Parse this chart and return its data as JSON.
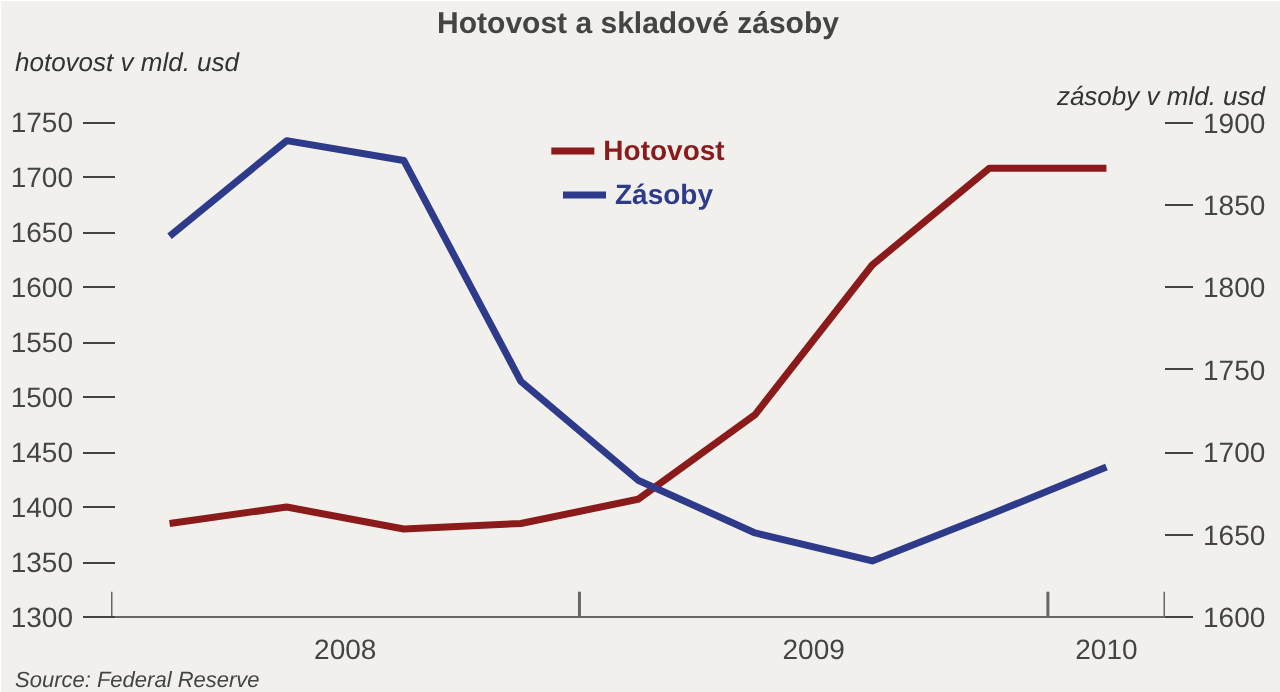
{
  "chart_data": {
    "type": "line",
    "title": "Hotovost a skladové zásoby",
    "ylabel": "hotovost v mld. usd",
    "y2label": "zásoby v mld. usd",
    "x": [
      2008.125,
      2008.375,
      2008.625,
      2008.875,
      2009.125,
      2009.375,
      2009.625,
      2009.875,
      2010.125
    ],
    "xlim": [
      2008,
      2010.25
    ],
    "xticks": [
      {
        "value": 2008,
        "label": null
      },
      {
        "value": 2008.5,
        "label": "2008"
      },
      {
        "value": 2009,
        "label": null
      },
      {
        "value": 2009.5,
        "label": "2009"
      },
      {
        "value": 2010,
        "label": null
      },
      {
        "value": 2010.125,
        "label": "2010"
      },
      {
        "value": 2010.25,
        "label": null
      }
    ],
    "ylim": [
      1300,
      1760
    ],
    "yticks": [
      1300,
      1350,
      1400,
      1450,
      1500,
      1550,
      1600,
      1650,
      1700,
      1750
    ],
    "y2lim": [
      1600,
      1907
    ],
    "y2ticks": [
      1600,
      1650,
      1700,
      1750,
      1800,
      1850,
      1900
    ],
    "series": [
      {
        "name": "Hotovost",
        "color": "#8b1a1a",
        "values": [
          1385,
          1400,
          1380,
          1385,
          1407,
          1484,
          1620,
          1708,
          1708
        ]
      },
      {
        "name": "Zásoby",
        "color": "#2e3a8a",
        "axis": "y2",
        "values": [
          1831,
          1889,
          1877,
          1743,
          1683,
          1651,
          1634,
          1662,
          1691
        ]
      }
    ],
    "legend": "top",
    "grid": false,
    "annotations": [
      "Source: Federal Reserve"
    ]
  }
}
